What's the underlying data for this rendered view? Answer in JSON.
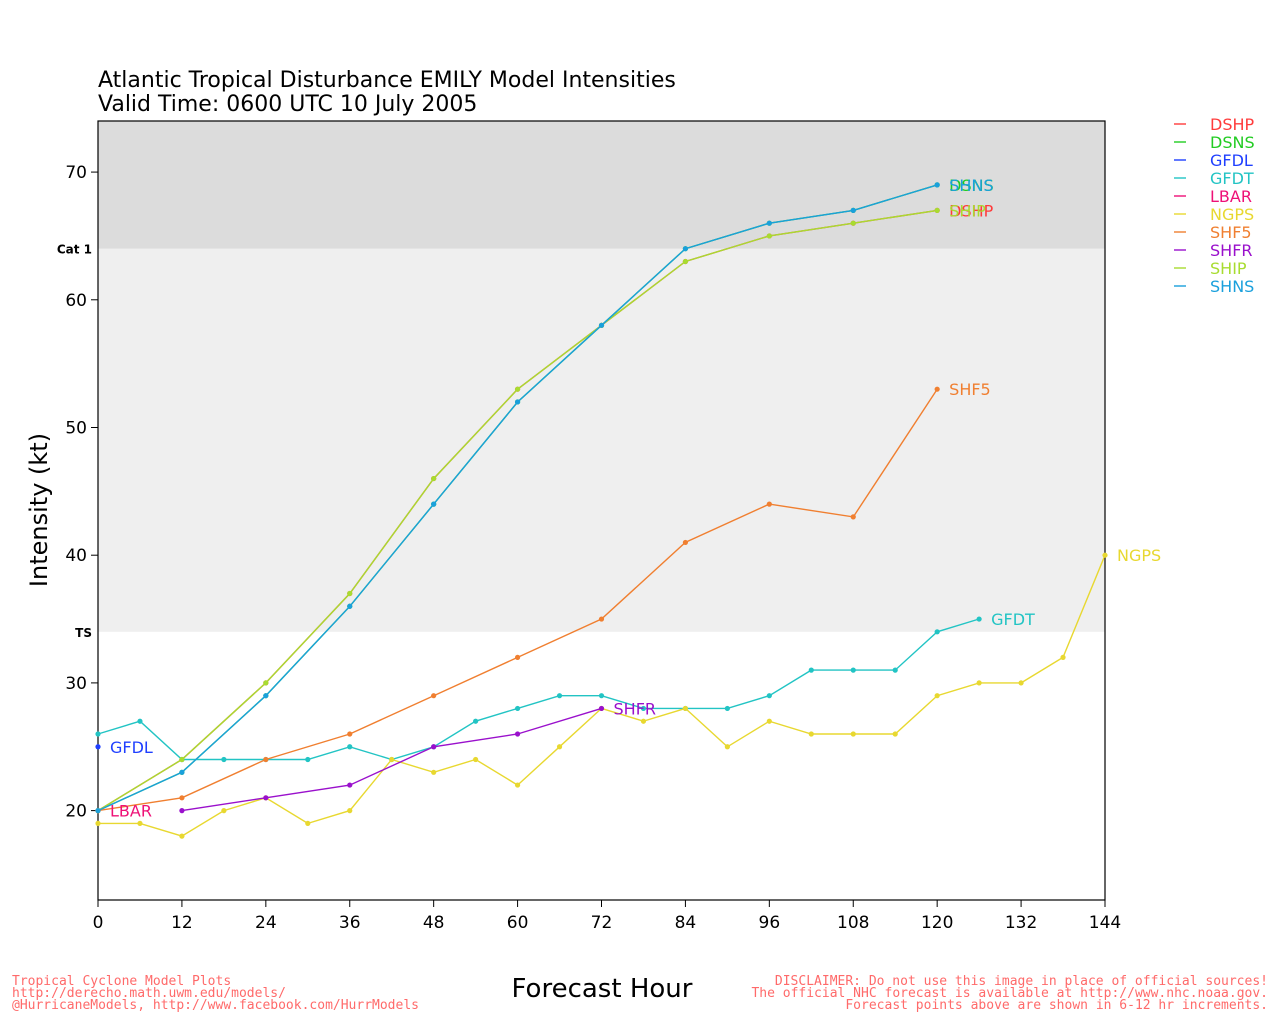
{
  "chart_data": {
    "type": "line",
    "title": "Atlantic Tropical Disturbance EMILY Model Intensities",
    "subtitle": "Valid Time: 0600 UTC 10 July 2005",
    "xlabel": "Forecast Hour",
    "ylabel": "Intensity (kt)",
    "xlim": [
      0,
      144
    ],
    "ylim": [
      13,
      74
    ],
    "xticks": [
      0,
      12,
      24,
      36,
      48,
      60,
      72,
      84,
      96,
      108,
      120,
      132,
      144
    ],
    "yticks": [
      20,
      30,
      40,
      50,
      60,
      70
    ],
    "bands": [
      {
        "label": "TS",
        "from": 34,
        "to": 64,
        "color": "#efefef"
      },
      {
        "label": "Cat 1",
        "from": 64,
        "to": 74,
        "color": "#dcdcdc"
      }
    ],
    "grid": false,
    "legend_position": "top-right",
    "series": [
      {
        "name": "DSHP",
        "color": "#ff3b3b",
        "end_label": "DSHP",
        "points": [
          [
            0,
            20
          ],
          [
            12,
            24
          ],
          [
            24,
            30
          ],
          [
            36,
            37
          ],
          [
            48,
            46
          ],
          [
            60,
            53
          ],
          [
            72,
            58
          ],
          [
            84,
            63
          ],
          [
            96,
            65
          ],
          [
            108,
            66
          ],
          [
            120,
            67
          ]
        ]
      },
      {
        "name": "DSNS",
        "color": "#22cc22",
        "end_label": "DSNS",
        "points": [
          [
            0,
            20
          ],
          [
            12,
            23
          ],
          [
            24,
            29
          ],
          [
            36,
            36
          ],
          [
            48,
            44
          ],
          [
            60,
            52
          ],
          [
            72,
            58
          ],
          [
            84,
            64
          ],
          [
            96,
            66
          ],
          [
            108,
            67
          ],
          [
            120,
            69
          ]
        ]
      },
      {
        "name": "GFDL",
        "color": "#1f3fff",
        "end_label": "GFDL",
        "points": [
          [
            0,
            25
          ]
        ]
      },
      {
        "name": "GFDT",
        "color": "#22c4c4",
        "end_label": "GFDT",
        "points": [
          [
            0,
            26
          ],
          [
            6,
            27
          ],
          [
            12,
            24
          ],
          [
            18,
            24
          ],
          [
            24,
            24
          ],
          [
            30,
            24
          ],
          [
            36,
            25
          ],
          [
            42,
            24
          ],
          [
            48,
            25
          ],
          [
            54,
            27
          ],
          [
            60,
            28
          ],
          [
            66,
            29
          ],
          [
            72,
            29
          ],
          [
            78,
            28
          ],
          [
            84,
            28
          ],
          [
            90,
            28
          ],
          [
            96,
            29
          ],
          [
            102,
            31
          ],
          [
            108,
            31
          ],
          [
            114,
            31
          ],
          [
            120,
            34
          ],
          [
            126,
            35
          ]
        ]
      },
      {
        "name": "LBAR",
        "color": "#ee1177",
        "end_label": "LBAR",
        "points": [
          [
            0,
            20
          ]
        ]
      },
      {
        "name": "NGPS",
        "color": "#e8d830",
        "end_label": "NGPS",
        "points": [
          [
            0,
            19
          ],
          [
            6,
            19
          ],
          [
            12,
            18
          ],
          [
            18,
            20
          ],
          [
            24,
            21
          ],
          [
            30,
            19
          ],
          [
            36,
            20
          ],
          [
            42,
            24
          ],
          [
            48,
            23
          ],
          [
            54,
            24
          ],
          [
            60,
            22
          ],
          [
            66,
            25
          ],
          [
            72,
            28
          ],
          [
            78,
            27
          ],
          [
            84,
            28
          ],
          [
            90,
            25
          ],
          [
            96,
            27
          ],
          [
            102,
            26
          ],
          [
            108,
            26
          ],
          [
            114,
            26
          ],
          [
            120,
            29
          ],
          [
            126,
            30
          ],
          [
            132,
            30
          ],
          [
            138,
            32
          ],
          [
            144,
            40
          ]
        ]
      },
      {
        "name": "SHF5",
        "color": "#f07f30",
        "end_label": "SHF5",
        "points": [
          [
            0,
            20
          ],
          [
            12,
            21
          ],
          [
            24,
            24
          ],
          [
            36,
            26
          ],
          [
            48,
            29
          ],
          [
            60,
            32
          ],
          [
            72,
            35
          ],
          [
            84,
            41
          ],
          [
            96,
            44
          ],
          [
            108,
            43
          ],
          [
            120,
            53
          ]
        ]
      },
      {
        "name": "SHFR",
        "color": "#9a10cc",
        "end_label": "SHFR",
        "points": [
          [
            12,
            20
          ],
          [
            24,
            21
          ],
          [
            36,
            22
          ],
          [
            48,
            25
          ],
          [
            60,
            26
          ],
          [
            72,
            28
          ]
        ]
      },
      {
        "name": "SHIP",
        "color": "#a8dc30",
        "end_label": "SHIP",
        "points": [
          [
            0,
            20
          ],
          [
            12,
            24
          ],
          [
            24,
            30
          ],
          [
            36,
            37
          ],
          [
            48,
            46
          ],
          [
            60,
            53
          ],
          [
            72,
            58
          ],
          [
            84,
            63
          ],
          [
            96,
            65
          ],
          [
            108,
            66
          ],
          [
            120,
            67
          ]
        ]
      },
      {
        "name": "SHNS",
        "color": "#1aa0dc",
        "end_label": "SHNS",
        "points": [
          [
            0,
            20
          ],
          [
            12,
            23
          ],
          [
            24,
            29
          ],
          [
            36,
            36
          ],
          [
            48,
            44
          ],
          [
            60,
            52
          ],
          [
            72,
            58
          ],
          [
            84,
            64
          ],
          [
            96,
            66
          ],
          [
            108,
            67
          ],
          [
            120,
            69
          ]
        ]
      }
    ]
  },
  "footer": {
    "credits": [
      "Tropical Cyclone Model Plots",
      "http://derecho.math.uwm.edu/models/",
      "@HurricaneModels, http://www.facebook.com/HurrModels"
    ],
    "disclaimer": [
      "DISCLAIMER: Do not use this image in place of official sources!",
      "The official NHC forecast is available at http://www.nhc.noaa.gov.",
      "Forecast points above are shown in 6-12 hr increments."
    ]
  }
}
